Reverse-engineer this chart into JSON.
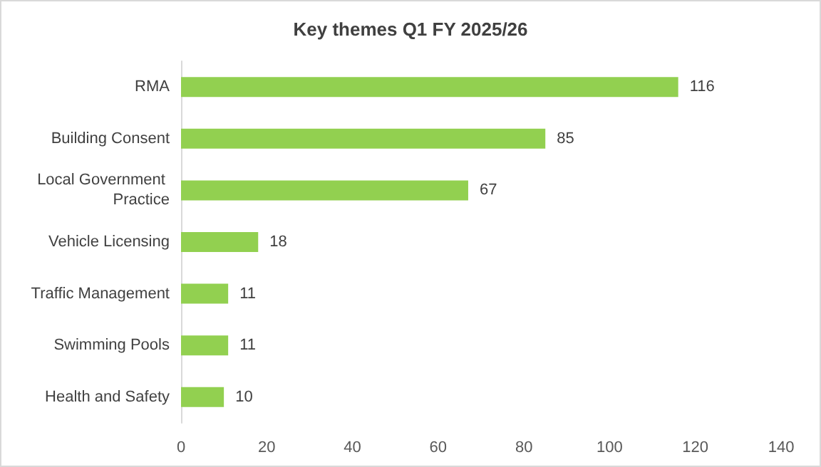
{
  "chart_data": {
    "type": "bar",
    "orientation": "horizontal",
    "title": "Key themes Q1 FY 2025/26",
    "categories": [
      "RMA",
      "Building Consent",
      "Local Government Practice",
      "Vehicle Licensing",
      "Traffic Management",
      "Swimming Pools",
      "Health and Safety"
    ],
    "values": [
      116,
      85,
      67,
      18,
      11,
      11,
      10
    ],
    "color": "#92d050",
    "xlim": [
      0,
      140
    ],
    "xticks": [
      0,
      20,
      40,
      60,
      80,
      100,
      120,
      140
    ],
    "grid": false,
    "data_labels": true
  }
}
